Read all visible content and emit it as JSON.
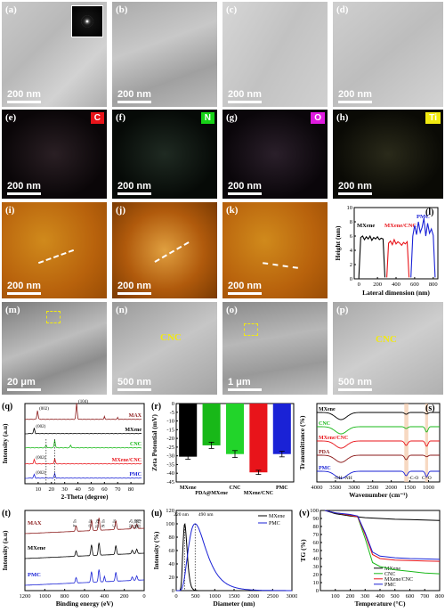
{
  "panel_labels": {
    "a": "(a)",
    "b": "(b)",
    "c": "(c)",
    "d": "(d)",
    "e": "(e)",
    "f": "(f)",
    "g": "(g)",
    "h": "(h)",
    "i": "(i)",
    "j": "(j)",
    "k": "(k)",
    "l": "(l)",
    "m": "(m)",
    "n": "(n)",
    "o": "(o)",
    "p": "(p)",
    "q": "(q)",
    "r": "(r)",
    "s": "(s)",
    "t": "(t)",
    "u": "(u)",
    "v": "(v)"
  },
  "scale_bars": {
    "nm200": "200 nm",
    "nm500": "500 nm",
    "um20": "20 μm",
    "um1": "1 μm"
  },
  "eds_elements": [
    {
      "key": "C",
      "color": "#e8141a"
    },
    {
      "key": "N",
      "color": "#17d317"
    },
    {
      "key": "O",
      "color": "#e01be0"
    },
    {
      "key": "Ti",
      "color": "#f2ea10"
    }
  ],
  "cnc_label": "CNC",
  "chart_data": [
    {
      "panel": "l",
      "type": "line",
      "xlabel": "Lateral dimension (nm)",
      "ylabel": "Height (nm)",
      "xlim": [
        -50,
        850
      ],
      "ylim": [
        0,
        10
      ],
      "xticks": [
        0,
        200,
        400,
        600,
        800
      ],
      "yticks": [
        0,
        2,
        4,
        6,
        8,
        10
      ],
      "series": [
        {
          "name": "MXene",
          "color": "#000000",
          "x": [
            0,
            20,
            40,
            60,
            80,
            100,
            120,
            140,
            160,
            180,
            200,
            220,
            240,
            260,
            280
          ],
          "y": [
            0.2,
            5.8,
            6.0,
            5.5,
            5.9,
            5.6,
            6.0,
            5.4,
            5.8,
            5.6,
            5.9,
            5.5,
            5.7,
            5.6,
            0.2
          ]
        },
        {
          "name": "MXene/CNC",
          "color": "#e8141a",
          "x": [
            300,
            320,
            340,
            360,
            380,
            400,
            420,
            440,
            460,
            480,
            500,
            520,
            540
          ],
          "y": [
            0.2,
            5.0,
            5.3,
            4.8,
            5.5,
            4.9,
            5.2,
            5.0,
            4.7,
            5.1,
            4.9,
            5.2,
            0.2
          ]
        },
        {
          "name": "PMC",
          "color": "#1a22d6",
          "x": [
            560,
            580,
            600,
            620,
            640,
            660,
            680,
            700,
            720,
            740,
            760,
            780,
            800,
            820
          ],
          "y": [
            0.2,
            6.0,
            7.5,
            6.2,
            8.0,
            6.5,
            7.2,
            8.5,
            6.0,
            7.8,
            6.4,
            7.0,
            6.1,
            0.2
          ]
        }
      ]
    },
    {
      "panel": "q",
      "type": "line",
      "xlabel": "2-Theta (degree)",
      "ylabel": "Intensity (a.u)",
      "xlim": [
        0,
        90
      ],
      "xticks": [
        10,
        20,
        30,
        40,
        50,
        60,
        70,
        80
      ],
      "series": [
        {
          "name": "MAX",
          "color": "#8b1a1a",
          "peaks": [
            "(002)",
            "(104)"
          ]
        },
        {
          "name": "MXene",
          "color": "#000000",
          "peaks": [
            "(002)"
          ]
        },
        {
          "name": "CNC",
          "color": "#18b818"
        },
        {
          "name": "MXene/CNC",
          "color": "#e8141a",
          "peaks": [
            "(002)"
          ]
        },
        {
          "name": "PMC",
          "color": "#1a22d6",
          "peaks": [
            "(002)"
          ]
        }
      ]
    },
    {
      "panel": "r",
      "type": "bar",
      "ylabel": "Zeta Potential (mV)",
      "ylim": [
        -45,
        0
      ],
      "yticks": [
        0,
        -5,
        -10,
        -15,
        -20,
        -25,
        -30,
        -35,
        -40,
        -45
      ],
      "categories": [
        "MXene",
        "PDA@MXene",
        "CNC",
        "MXene/CNC",
        "PMC"
      ],
      "values": [
        -30.5,
        -24,
        -29,
        -39.5,
        -29
      ],
      "errors": [
        1.5,
        1.8,
        2.0,
        1.2,
        1.6
      ],
      "colors": [
        "#000000",
        "#18b818",
        "#22d42a",
        "#e8141a",
        "#1a22d6"
      ]
    },
    {
      "panel": "s",
      "type": "line",
      "xlabel": "Wavenumber (cm⁻¹)",
      "ylabel": "Transmittance (%)",
      "xticks": [
        4000,
        3500,
        3000,
        2500,
        2000,
        1500,
        1000
      ],
      "series": [
        {
          "name": "MXene",
          "color": "#000000"
        },
        {
          "name": "CNC",
          "color": "#18b818"
        },
        {
          "name": "MXene/CNC",
          "color": "#e8141a"
        },
        {
          "name": "PDA",
          "color": "#8b1a1a"
        },
        {
          "name": "PMC",
          "color": "#1a22d6"
        }
      ],
      "annotations": [
        "-OH -NH",
        "-C-O",
        "C=O"
      ]
    },
    {
      "panel": "t",
      "type": "line",
      "xlabel": "Binding energy (eV)",
      "ylabel": "Intensity (a.u)",
      "xticks": [
        1200,
        1000,
        800,
        600,
        400,
        200,
        0
      ],
      "series": [
        {
          "name": "MAX",
          "color": "#8b1a1a"
        },
        {
          "name": "MXene",
          "color": "#000000"
        },
        {
          "name": "PMC",
          "color": "#1a22d6"
        }
      ],
      "annotations": [
        "O 1s",
        "Ti 2p",
        "N 1s",
        "C 1s",
        "F 1s",
        "Al 2s",
        "Al 2p",
        "Ti 3s",
        "Ti 3p"
      ]
    },
    {
      "panel": "u",
      "type": "line",
      "xlabel": "Diameter (nm)",
      "ylabel": "Intensity (%)",
      "xlim": [
        0,
        3000
      ],
      "ylim": [
        0,
        120
      ],
      "xticks": [
        0,
        500,
        1000,
        1500,
        2000,
        2500,
        3000
      ],
      "yticks": [
        0,
        20,
        40,
        60,
        80,
        100,
        120
      ],
      "series": [
        {
          "name": "MXene",
          "color": "#000000",
          "peak": 220
        },
        {
          "name": "PMC",
          "color": "#1a22d6",
          "peak": 490
        }
      ],
      "annotations": [
        "220 nm",
        "490 nm"
      ]
    },
    {
      "panel": "v",
      "type": "line",
      "xlabel": "Temperature (°C)",
      "ylabel": "TG (%)",
      "xlim": [
        0,
        800
      ],
      "ylim": [
        0,
        100
      ],
      "xticks": [
        100,
        200,
        300,
        400,
        500,
        600,
        700,
        800
      ],
      "yticks": [
        0,
        10,
        20,
        30,
        40,
        50,
        60,
        70,
        80,
        90,
        100
      ],
      "series": [
        {
          "name": "MXene",
          "color": "#000000",
          "x": [
            30,
            100,
            200,
            300,
            400,
            500,
            600,
            700,
            800
          ],
          "y": [
            100,
            96,
            93,
            91,
            90,
            89,
            88.5,
            88,
            87.5
          ]
        },
        {
          "name": "CNC",
          "color": "#18b818",
          "x": [
            30,
            100,
            200,
            250,
            300,
            350,
            400,
            500,
            600,
            700,
            800
          ],
          "y": [
            100,
            97,
            94,
            92,
            65,
            35,
            30,
            26,
            24,
            22,
            21
          ]
        },
        {
          "name": "MXene/CNC",
          "color": "#e8141a",
          "x": [
            30,
            100,
            200,
            250,
            300,
            350,
            400,
            500,
            600,
            700,
            800
          ],
          "y": [
            100,
            97,
            94,
            92,
            70,
            45,
            40,
            38,
            37.5,
            37,
            36.5
          ]
        },
        {
          "name": "PMC",
          "color": "#1a22d6",
          "x": [
            30,
            100,
            200,
            250,
            300,
            350,
            400,
            500,
            600,
            700,
            800
          ],
          "y": [
            100,
            97,
            95,
            93,
            72,
            48,
            43,
            41,
            40,
            39.5,
            39
          ]
        }
      ]
    }
  ]
}
